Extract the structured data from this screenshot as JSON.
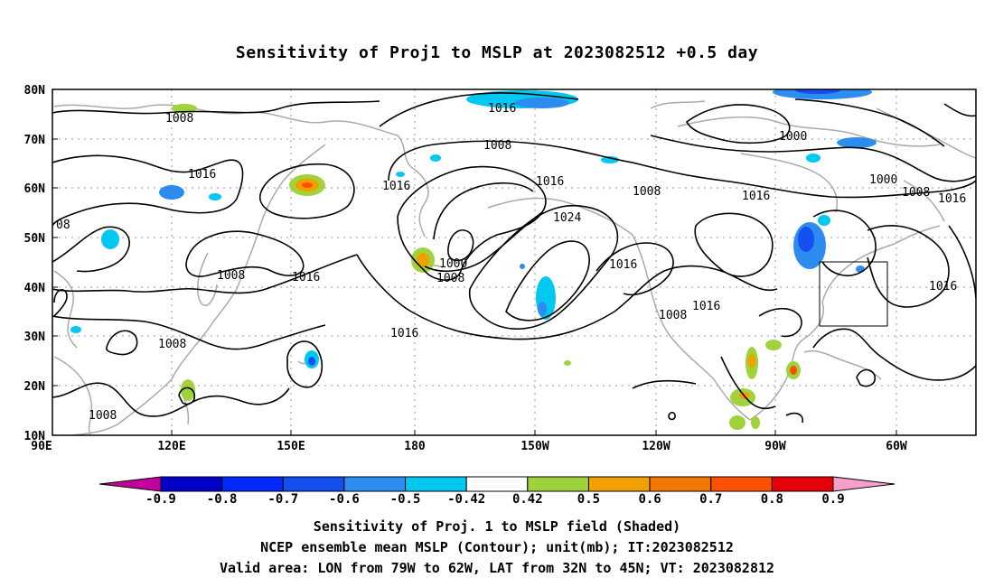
{
  "title": "Sensitivity of Proj1 to MSLP at 2023082512 +0.5 day",
  "map": {
    "lat_labels": [
      "80N",
      "70N",
      "60N",
      "50N",
      "40N",
      "30N",
      "20N",
      "10N"
    ],
    "lon_labels": [
      "90E",
      "120E",
      "150E",
      "180",
      "150W",
      "120W",
      "90W",
      "60W"
    ],
    "contour_labels": [
      "1008",
      "1016",
      "08",
      "1008",
      "1016",
      "1016",
      "1000",
      "1008",
      "1008",
      "1016",
      "1024",
      "1016",
      "1016",
      "1008",
      "1016",
      "1008",
      "1000",
      "1016",
      "1008",
      "1016",
      "1000",
      "1008",
      "1016",
      "1016"
    ],
    "contour_color": "#000000",
    "coastline_color": "#aaaaaa",
    "grid_color": "#999999"
  },
  "colorbar": {
    "colors": [
      "#c0009b",
      "#0000c8",
      "#0028ff",
      "#1450f0",
      "#2d8cf0",
      "#00c8f0",
      "#ffffff",
      "#a0d23c",
      "#f0a000",
      "#f07800",
      "#ff5000",
      "#e6000a",
      "#ff00ff"
    ],
    "end_left_color": "#c0009b",
    "end_right_color": "#f5a0c8",
    "labels": [
      "-0.9",
      "-0.8",
      "-0.7",
      "-0.6",
      "-0.5",
      "-0.42",
      "0.42",
      "0.5",
      "0.6",
      "0.7",
      "0.8",
      "0.9"
    ]
  },
  "captions": {
    "line1": "Sensitivity of Proj. 1 to MSLP field (Shaded)",
    "line2": "NCEP ensemble mean MSLP (Contour); unit(mb); IT:2023082512",
    "line3": "Valid area: LON from 79W to 62W, LAT from 32N to 45N; VT: 2023082812"
  }
}
